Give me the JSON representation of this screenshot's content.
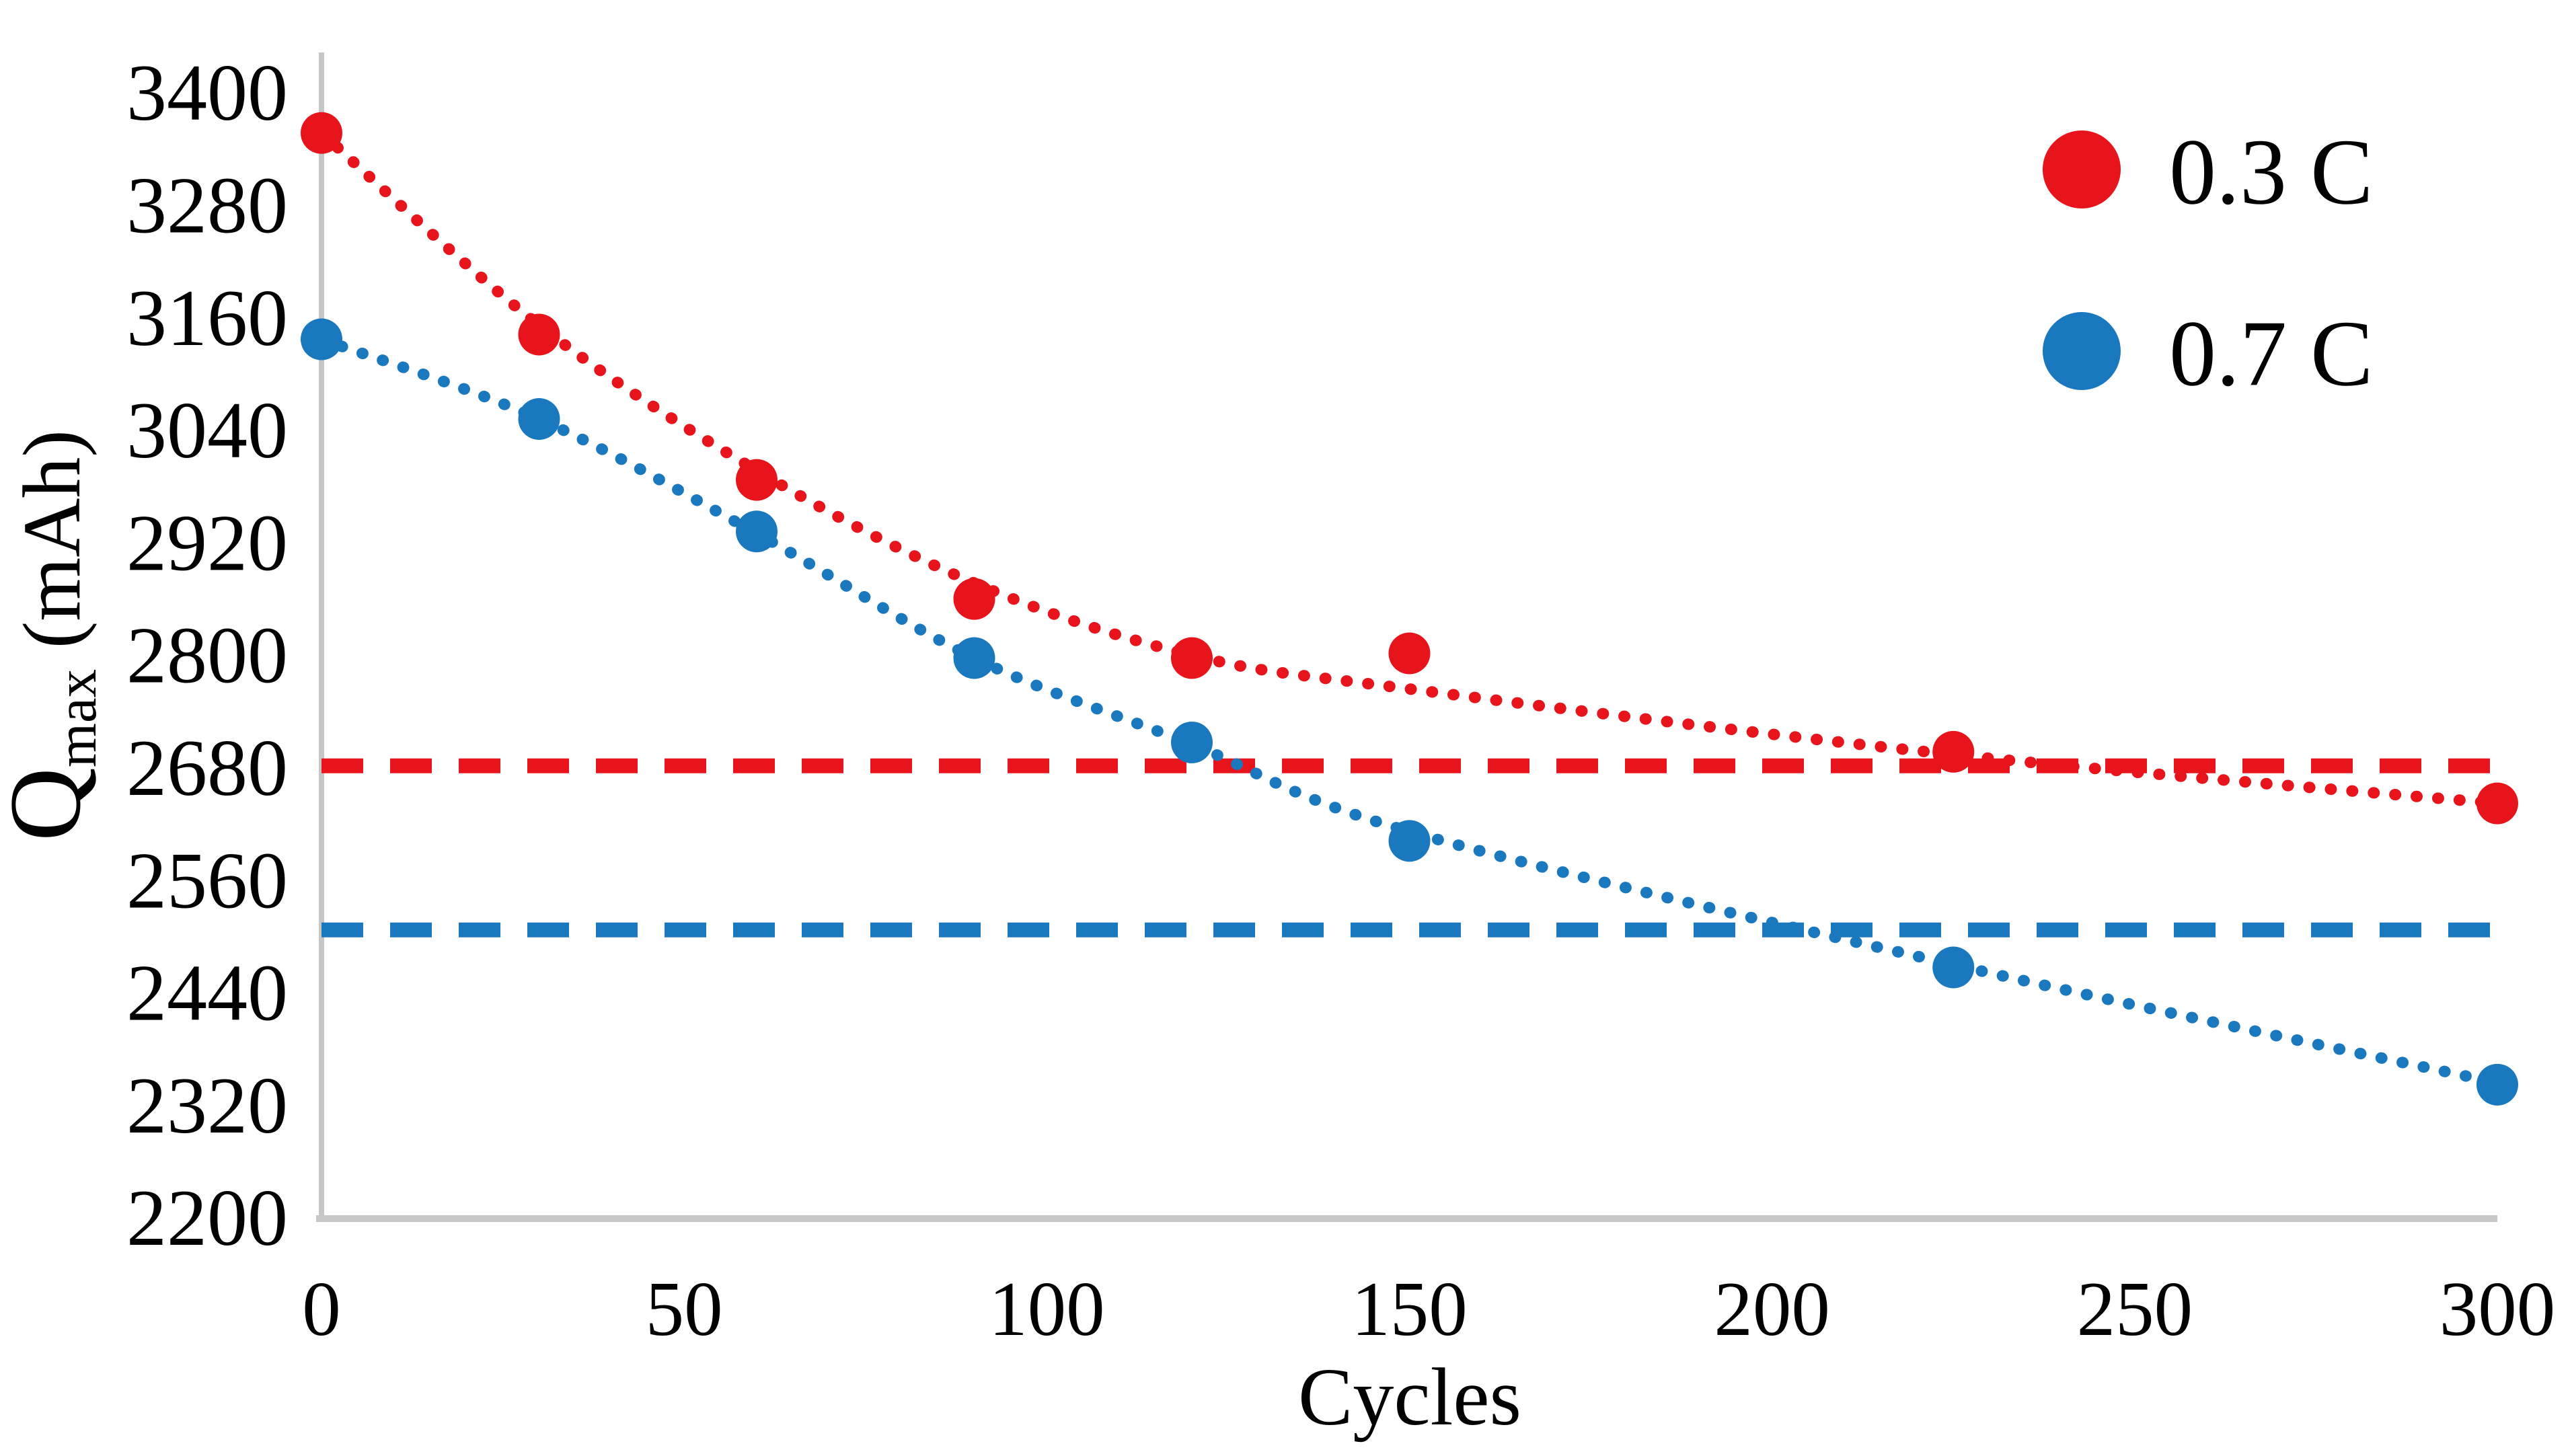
{
  "chart_data": {
    "type": "scatter",
    "title": "",
    "xlabel": "Cycles",
    "ylabel": {
      "pre": "Q",
      "sub": "max",
      "post": " (mAh)"
    },
    "xlim": [
      0,
      300
    ],
    "ylim": [
      2200,
      3400
    ],
    "x_ticks": [
      0,
      50,
      100,
      150,
      200,
      250,
      300
    ],
    "y_ticks": [
      2200,
      2320,
      2440,
      2560,
      2680,
      2800,
      2920,
      3040,
      3160,
      3280,
      3400
    ],
    "grid": false,
    "legend_position": "top-right",
    "axis_color": "#c6c6c6",
    "text_color": "#000000",
    "series": [
      {
        "name": "0.3 C",
        "color": "#e8141c",
        "marker": "circle",
        "x": [
          0,
          30,
          60,
          90,
          120,
          150,
          225,
          300
        ],
        "y": [
          3355,
          3140,
          2985,
          2858,
          2795,
          2800,
          2695,
          2640
        ],
        "trend": [
          [
            0,
            3355
          ],
          [
            30,
            3150
          ],
          [
            60,
            2995
          ],
          [
            90,
            2875
          ],
          [
            120,
            2798
          ],
          [
            150,
            2762
          ],
          [
            225,
            2692
          ],
          [
            300,
            2640
          ]
        ],
        "trend_style": "dotted",
        "threshold": 2680,
        "threshold_style": "dashed"
      },
      {
        "name": "0.7 C",
        "color": "#1a78be",
        "marker": "circle",
        "x": [
          0,
          30,
          60,
          90,
          120,
          150,
          225,
          300
        ],
        "y": [
          3135,
          3050,
          2930,
          2795,
          2705,
          2600,
          2465,
          2340
        ],
        "trend": [
          [
            0,
            3135
          ],
          [
            30,
            3050
          ],
          [
            60,
            2928
          ],
          [
            90,
            2795
          ],
          [
            120,
            2703
          ],
          [
            150,
            2610
          ],
          [
            225,
            2468
          ],
          [
            300,
            2342
          ]
        ],
        "trend_style": "dotted",
        "threshold": 2505,
        "threshold_style": "dashed"
      }
    ]
  }
}
